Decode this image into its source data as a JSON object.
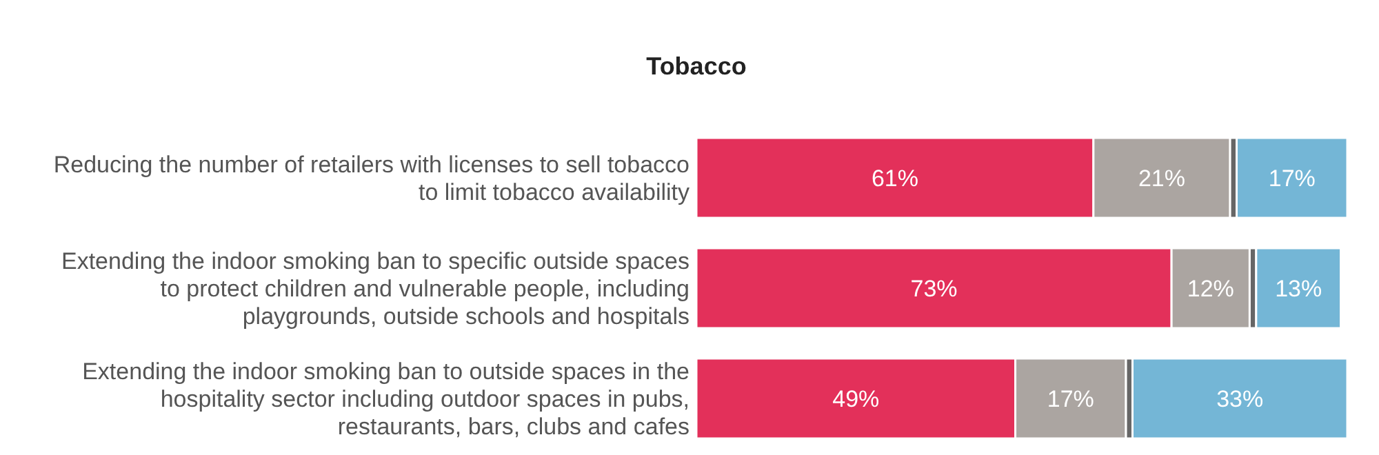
{
  "chart_data": {
    "type": "bar",
    "orientation": "horizontal",
    "stacked": true,
    "title": "Tobacco",
    "categories": [
      "Reducing the number of retailers with licenses to sell tobacco to limit tobacco availability",
      "Extending the indoor smoking ban to specific outside spaces to protect children and vulnerable people, including playgrounds, outside schools and hospitals",
      "Extending the indoor smoking ban to outside spaces in the hospitality sector including outdoor spaces in pubs, restaurants, bars, clubs and cafes"
    ],
    "series": [
      {
        "color": "#e3305a",
        "values": [
          61,
          73,
          49
        ],
        "value_labels": [
          "61%",
          "73%",
          "49%"
        ]
      },
      {
        "color": "#aba5a1",
        "values": [
          21,
          12,
          17
        ],
        "value_labels": [
          "21%",
          "12%",
          "17%"
        ]
      },
      {
        "color": "#666666",
        "values": [
          1,
          1,
          1
        ],
        "value_labels": [
          null,
          null,
          null
        ]
      },
      {
        "color": "#74b6d6",
        "values": [
          17,
          13,
          33
        ],
        "value_labels": [
          "17%",
          "13%",
          "33%"
        ]
      }
    ]
  }
}
